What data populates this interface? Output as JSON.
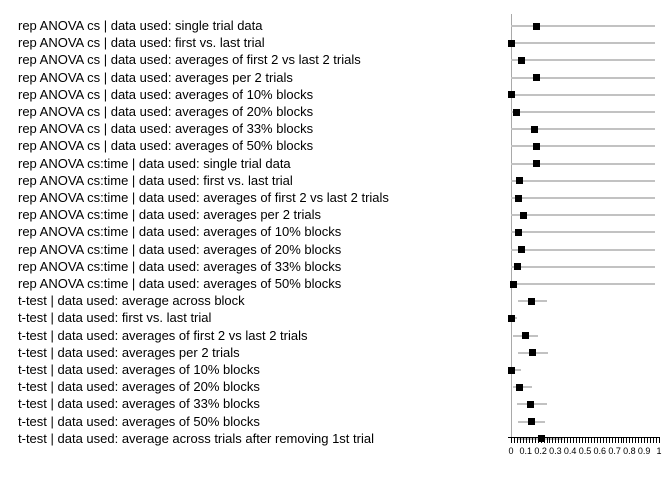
{
  "chart_data": {
    "type": "scatter",
    "subtype": "forest-dot-plot",
    "title": "",
    "xlabel": "",
    "ylabel": "",
    "xlim": [
      0,
      1
    ],
    "grid": false,
    "legend": false,
    "x_tick_labels": [
      "0",
      "0.1",
      "0.2",
      "0.3",
      "0.4",
      "0.5",
      "0.6",
      "0.7",
      "0.8",
      "0.9",
      "1"
    ],
    "x_tick_values": [
      0,
      0.1,
      0.2,
      0.3,
      0.4,
      0.5,
      0.6,
      0.7,
      0.8,
      0.9,
      1
    ],
    "minor_tick_step": 0.02,
    "rows": [
      {
        "label": "rep ANOVA cs | data used: single trial data",
        "value": 0.17,
        "lo": 0,
        "hi": 0.97
      },
      {
        "label": "rep ANOVA cs | data used: first vs. last trial",
        "value": 0.0,
        "lo": 0,
        "hi": 0.97
      },
      {
        "label": "rep ANOVA cs | data used: averages of first 2 vs last 2 trials",
        "value": 0.07,
        "lo": 0,
        "hi": 0.97
      },
      {
        "label": "rep ANOVA cs | data used: averages per 2 trials",
        "value": 0.17,
        "lo": 0,
        "hi": 0.97
      },
      {
        "label": "rep ANOVA cs | data used: averages of 10% blocks",
        "value": 0.0,
        "lo": 0,
        "hi": 0.97
      },
      {
        "label": "rep ANOVA cs | data used: averages of 20% blocks",
        "value": 0.04,
        "lo": 0,
        "hi": 0.97
      },
      {
        "label": "rep ANOVA cs | data used: averages of 33% blocks",
        "value": 0.16,
        "lo": 0,
        "hi": 0.97
      },
      {
        "label": "rep ANOVA cs | data used: averages of 50% blocks",
        "value": 0.17,
        "lo": 0,
        "hi": 0.97
      },
      {
        "label": "rep ANOVA cs:time | data used: single trial data",
        "value": 0.17,
        "lo": 0,
        "hi": 0.97
      },
      {
        "label": "rep ANOVA cs:time | data used: first vs. last trial",
        "value": 0.055,
        "lo": 0,
        "hi": 0.97
      },
      {
        "label": "rep ANOVA cs:time | data used: averages of first 2 vs last 2 trials",
        "value": 0.05,
        "lo": 0,
        "hi": 0.97
      },
      {
        "label": "rep ANOVA cs:time | data used: averages per 2 trials",
        "value": 0.085,
        "lo": 0,
        "hi": 0.97
      },
      {
        "label": "rep ANOVA cs:time | data used: averages of 10% blocks",
        "value": 0.05,
        "lo": 0,
        "hi": 0.97
      },
      {
        "label": "rep ANOVA cs:time | data used: averages of 20% blocks",
        "value": 0.07,
        "lo": 0,
        "hi": 0.97
      },
      {
        "label": "rep ANOVA cs:time | data used: averages of 33% blocks",
        "value": 0.045,
        "lo": 0,
        "hi": 0.97
      },
      {
        "label": "rep ANOVA cs:time | data used: averages of 50% blocks",
        "value": 0.02,
        "lo": 0,
        "hi": 0.97
      },
      {
        "label": "t-test | data used: average across block",
        "value": 0.14,
        "lo": 0.045,
        "hi": 0.24
      },
      {
        "label": "t-test | data used: first vs. last trial",
        "value": 0.0,
        "lo": -0.02,
        "hi": 0.04
      },
      {
        "label": "t-test | data used: averages of first 2 vs last 2 trials",
        "value": 0.095,
        "lo": 0.015,
        "hi": 0.18
      },
      {
        "label": "t-test | data used: averages per 2 trials",
        "value": 0.145,
        "lo": 0.05,
        "hi": 0.25
      },
      {
        "label": "t-test | data used: averages of 10% blocks",
        "value": 0.005,
        "lo": -0.02,
        "hi": 0.07
      },
      {
        "label": "t-test | data used: averages of 20% blocks",
        "value": 0.06,
        "lo": 0.015,
        "hi": 0.14
      },
      {
        "label": "t-test | data used: averages of 33% blocks",
        "value": 0.135,
        "lo": 0.04,
        "hi": 0.24
      },
      {
        "label": "t-test | data used: averages of 50% blocks",
        "value": 0.14,
        "lo": 0.05,
        "hi": 0.23
      },
      {
        "label": "t-test | data used: average across trials after removing 1st trial",
        "value": 0.205,
        "lo": 0.05,
        "hi": 0.35
      }
    ]
  },
  "colors": {
    "marker": "#000000",
    "range_line": "#c2c2c2",
    "axis_line": "#a9a9a9",
    "tick": "#000000",
    "text": "#000000",
    "background": "#ffffff"
  }
}
